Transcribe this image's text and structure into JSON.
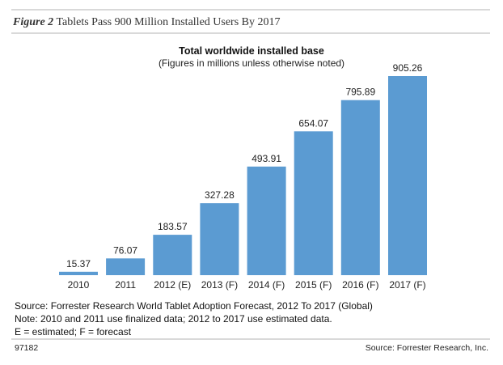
{
  "figure": {
    "label": "Figure 2",
    "title": "Tablets Pass 900 Million Installed Users By 2017"
  },
  "chart_data": {
    "type": "bar",
    "title": "Total worldwide installed base",
    "subtitle": "(Figures in millions unless otherwise noted)",
    "categories": [
      "2010",
      "2011",
      "2012 (E)",
      "2013 (F)",
      "2014 (F)",
      "2015 (F)",
      "2016 (F)",
      "2017 (F)"
    ],
    "values": [
      15.37,
      76.07,
      183.57,
      327.28,
      493.91,
      654.07,
      795.89,
      905.26
    ],
    "value_labels": [
      "15.37",
      "76.07",
      "183.57",
      "327.28",
      "493.91",
      "654.07",
      "795.89",
      "905.26"
    ],
    "xlabel": "",
    "ylabel": "",
    "ylim": [
      0,
      905.26
    ],
    "bar_color": "#5b9bd2"
  },
  "notes": {
    "source": "Source: Forrester Research World Tablet Adoption Forecast, 2012 To 2017 (Global)",
    "note": "Note: 2010 and 2011 use finalized data; 2012 to 2017 use estimated data.",
    "legend": "E = estimated; F = forecast"
  },
  "footer": {
    "id": "97182",
    "source": "Source: Forrester Research, Inc."
  },
  "colors": {
    "rule": "#d9d9d9",
    "bar": "#5b9bd2"
  }
}
